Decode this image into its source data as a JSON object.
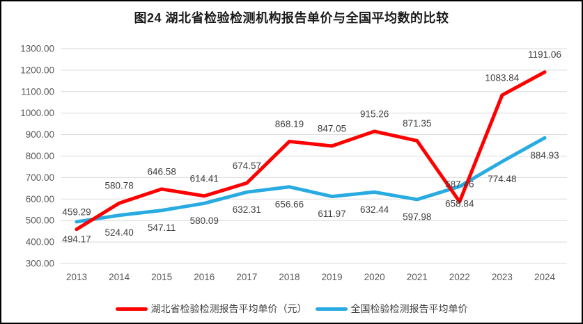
{
  "title": "图24 湖北省检验检测机构报告单价与全国平均数的比较",
  "chart_data": {
    "type": "line",
    "title": "图24 湖北省检验检测机构报告单价与全国平均数的比较",
    "categories": [
      "2013",
      "2014",
      "2015",
      "2016",
      "2017",
      "2018",
      "2019",
      "2020",
      "2021",
      "2022",
      "2023",
      "2024"
    ],
    "series": [
      {
        "name": "湖北省检验检测报告平均单价（元）",
        "color": "#FF0000",
        "label_position": "above",
        "values": [
          459.29,
          580.78,
          646.58,
          614.41,
          674.57,
          868.19,
          847.05,
          915.26,
          871.35,
          587.46,
          1083.84,
          1191.06
        ]
      },
      {
        "name": "全国检验检测报告平均单价",
        "color": "#29ABE2",
        "label_position": "below",
        "values": [
          494.17,
          524.4,
          547.11,
          580.09,
          632.31,
          656.66,
          611.97,
          632.44,
          597.98,
          658.84,
          774.48,
          884.93
        ]
      }
    ],
    "ylim": [
      300,
      1300
    ],
    "ytick_step": 100,
    "yticks": [
      "300.00",
      "400.00",
      "500.00",
      "600.00",
      "700.00",
      "800.00",
      "900.00",
      "1000.00",
      "1100.00",
      "1200.00",
      "1300.00"
    ],
    "grid": true,
    "legend_position": "bottom"
  },
  "colors": {
    "background": "#ffffff",
    "border": "#000000",
    "gridline": "#D9D9D9",
    "axis_label": "#595959",
    "data_label": "#404040",
    "series_red": "#FF0000",
    "series_blue": "#29ABE2"
  }
}
